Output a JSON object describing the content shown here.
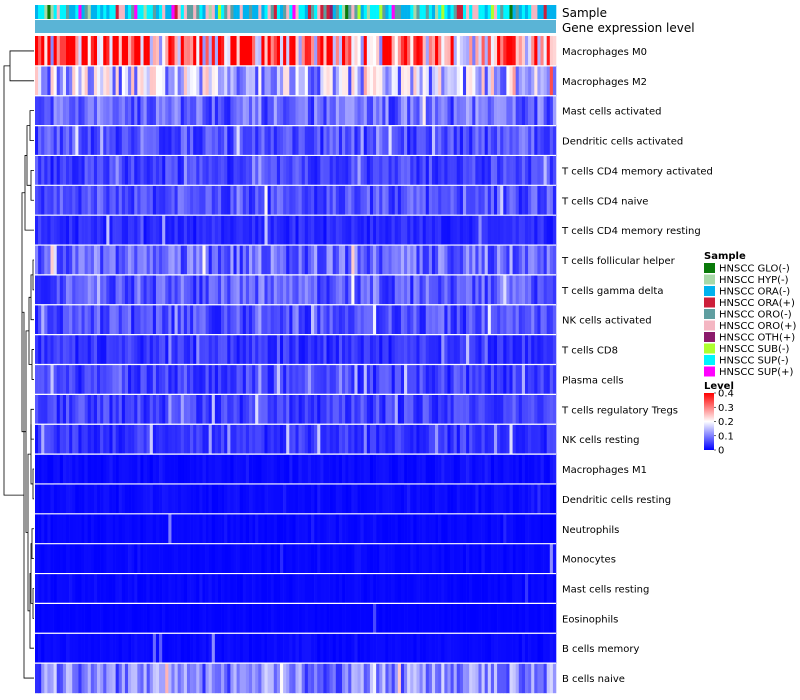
{
  "chart_data": {
    "type": "heatmap",
    "column_annotation_labels": [
      "Sample",
      "Gene expression level"
    ],
    "rows": [
      "Macrophages M0",
      "Macrophages M2",
      "Mast cells activated",
      "Dendritic cells activated",
      "T cells CD4 memory activated",
      "T cells CD4 naive",
      "T cells CD4 memory resting",
      "T cells follicular helper",
      "T cells gamma delta",
      "NK cells activated",
      "T cells CD8",
      "Plasma cells",
      "T cells regulatory  Tregs",
      "NK cells resting",
      "Macrophages M1",
      "Dendritic cells resting",
      "Neutrophils",
      "Monocytes",
      "Mast cells resting",
      "Eosinophils",
      "B cells memory",
      "B cells naive"
    ],
    "row_typical_level": [
      0.32,
      0.15,
      0.08,
      0.06,
      0.05,
      0.06,
      0.03,
      0.08,
      0.07,
      0.06,
      0.04,
      0.05,
      0.05,
      0.04,
      0.015,
      0.015,
      0.01,
      0.01,
      0.01,
      0.005,
      0.01,
      0.1
    ],
    "n_samples": 168,
    "sample_legend": {
      "title": "Sample",
      "items": [
        {
          "label": "HNSCC GLO(-)",
          "color": "#0a7a0a"
        },
        {
          "label": "HNSCC HYP(-)",
          "color": "#a8d8a8"
        },
        {
          "label": "HNSCC ORA(-)",
          "color": "#00b2ee"
        },
        {
          "label": "HNSCC ORA(+)",
          "color": "#cc1f3a"
        },
        {
          "label": "HNSCC ORO(-)",
          "color": "#5f9ea0"
        },
        {
          "label": "HNSCC ORO(+)",
          "color": "#f4b6c2"
        },
        {
          "label": "HNSCC OTH(+)",
          "color": "#8b1a6b"
        },
        {
          "label": "HNSCC SUB(-)",
          "color": "#adff2f"
        },
        {
          "label": "HNSCC SUP(-)",
          "color": "#00f5ff"
        },
        {
          "label": "HNSCC SUP(+)",
          "color": "#ff00ff"
        }
      ]
    },
    "level_legend": {
      "title": "Level",
      "ticks": [
        "0.4",
        "0.3",
        "0.2",
        "0.1",
        "0"
      ],
      "tick_values": [
        0.4,
        0.3,
        0.2,
        0.1,
        0
      ],
      "range": [
        0,
        0.4
      ],
      "colors": [
        "#0000ff",
        "#ffffff",
        "#ff0000"
      ]
    },
    "gene_expression_bar_color": "#5ab4d6"
  }
}
